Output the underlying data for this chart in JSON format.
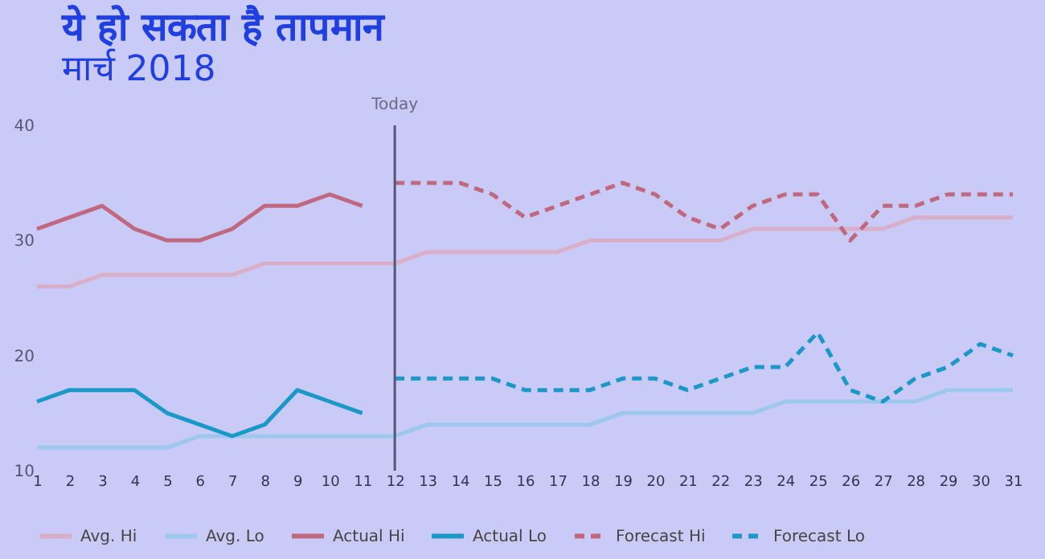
{
  "chart_data": {
    "type": "line",
    "title": "ये हो सकता है तापमान",
    "subtitle": "मार्च 2018",
    "xlim": [
      1,
      31
    ],
    "xticks": [
      1,
      2,
      3,
      4,
      5,
      6,
      7,
      8,
      9,
      10,
      11,
      12,
      13,
      14,
      15,
      16,
      17,
      18,
      19,
      20,
      21,
      22,
      23,
      24,
      25,
      26,
      27,
      28,
      29,
      30,
      31
    ],
    "ylim": [
      10,
      40
    ],
    "yticks": [
      10,
      20,
      30,
      40
    ],
    "grid": false,
    "legend": "bottom",
    "marker": "none",
    "ref_lines": [
      {
        "axis": "x",
        "value": 12,
        "label": "Today",
        "color": "#555577"
      }
    ],
    "series": [
      {
        "name": "Avg. Hi",
        "color": "#d9aec8",
        "line_style": "solid",
        "x": [
          1,
          2,
          3,
          4,
          5,
          6,
          7,
          8,
          9,
          10,
          11,
          12,
          13,
          14,
          15,
          16,
          17,
          18,
          19,
          20,
          21,
          22,
          23,
          24,
          25,
          26,
          27,
          28,
          29,
          30,
          31
        ],
        "values": [
          26,
          26,
          27,
          27,
          27,
          27,
          27,
          28,
          28,
          28,
          28,
          28,
          29,
          29,
          29,
          29,
          29,
          30,
          30,
          30,
          30,
          30,
          31,
          31,
          31,
          31,
          31,
          32,
          32,
          32,
          32
        ]
      },
      {
        "name": "Avg. Lo",
        "color": "#9cc8ee",
        "line_style": "solid",
        "x": [
          1,
          2,
          3,
          4,
          5,
          6,
          7,
          8,
          9,
          10,
          11,
          12,
          13,
          14,
          15,
          16,
          17,
          18,
          19,
          20,
          21,
          22,
          23,
          24,
          25,
          26,
          27,
          28,
          29,
          30,
          31
        ],
        "values": [
          12,
          12,
          12,
          12,
          12,
          13,
          13,
          13,
          13,
          13,
          13,
          13,
          14,
          14,
          14,
          14,
          14,
          14,
          15,
          15,
          15,
          15,
          15,
          16,
          16,
          16,
          16,
          16,
          17,
          17,
          17
        ]
      },
      {
        "name": "Actual Hi",
        "color": "#c0687f",
        "line_style": "solid",
        "x": [
          1,
          2,
          3,
          4,
          5,
          6,
          7,
          8,
          9,
          10,
          11
        ],
        "values": [
          31,
          32,
          33,
          31,
          30,
          30,
          31,
          33,
          33,
          34,
          33
        ]
      },
      {
        "name": "Actual Lo",
        "color": "#1a98c8",
        "line_style": "solid",
        "x": [
          1,
          2,
          3,
          4,
          5,
          6,
          7,
          8,
          9,
          10,
          11
        ],
        "values": [
          16,
          17,
          17,
          17,
          15,
          14,
          13,
          14,
          17,
          16,
          15
        ]
      },
      {
        "name": "Forecast Hi",
        "color": "#c0687f",
        "line_style": "dashed",
        "x": [
          12,
          13,
          14,
          15,
          16,
          17,
          18,
          19,
          20,
          21,
          22,
          23,
          24,
          25,
          26,
          27,
          28,
          29,
          30,
          31
        ],
        "values": [
          35,
          35,
          35,
          34,
          32,
          33,
          34,
          35,
          34,
          32,
          31,
          33,
          34,
          34,
          30,
          33,
          33,
          34,
          34,
          34
        ]
      },
      {
        "name": "Forecast Lo",
        "color": "#1a98c8",
        "line_style": "dashed",
        "x": [
          12,
          13,
          14,
          15,
          16,
          17,
          18,
          19,
          20,
          21,
          22,
          23,
          24,
          25,
          26,
          27,
          28,
          29,
          30,
          31
        ],
        "values": [
          18,
          18,
          18,
          18,
          17,
          17,
          17,
          18,
          18,
          17,
          18,
          19,
          19,
          22,
          17,
          16,
          18,
          19,
          21,
          20
        ]
      }
    ]
  }
}
